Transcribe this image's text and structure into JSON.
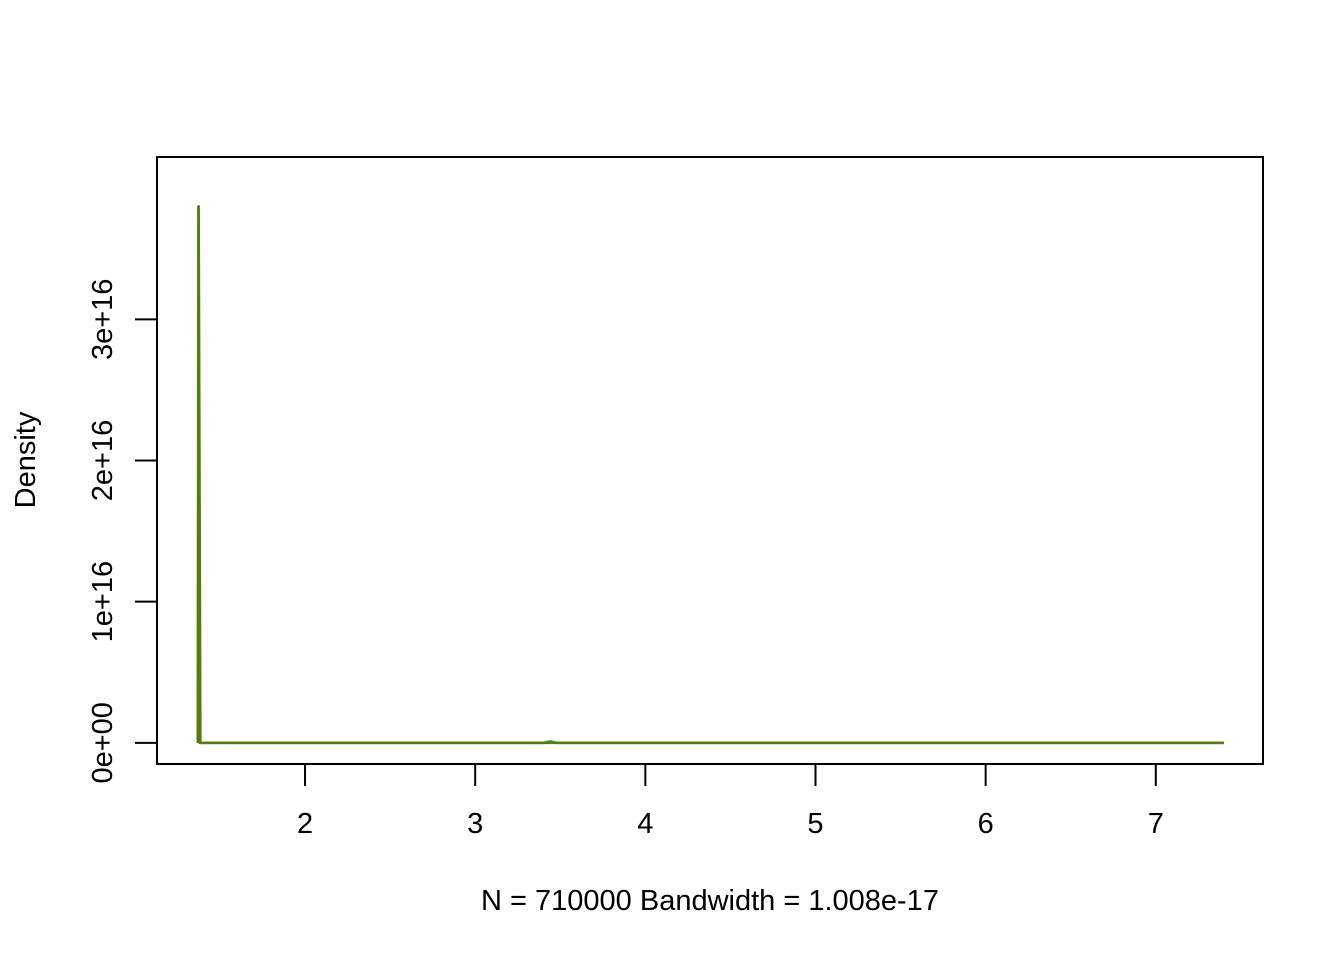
{
  "chart_data": {
    "type": "line",
    "title": "",
    "xlabel": "N = 710000   Bandwidth = 1.008e-17",
    "ylabel": "Density",
    "xlim": [
      1.13,
      7.63
    ],
    "ylim": [
      -1500000000000000.0,
      4.15e+16
    ],
    "x_ticks": [
      {
        "value": 2,
        "label": "2"
      },
      {
        "value": 3,
        "label": "3"
      },
      {
        "value": 4,
        "label": "4"
      },
      {
        "value": 5,
        "label": "5"
      },
      {
        "value": 6,
        "label": "6"
      },
      {
        "value": 7,
        "label": "7"
      }
    ],
    "y_ticks": [
      {
        "value": 0,
        "label": "0e+00"
      },
      {
        "value": 1e+16,
        "label": "1e+16"
      },
      {
        "value": 2e+16,
        "label": "2e+16"
      },
      {
        "value": 3e+16,
        "label": "3e+16"
      }
    ],
    "grid": false,
    "legend": "none",
    "series": [
      {
        "color": "#2ca02c",
        "x": [
          1.37,
          1.373,
          1.38,
          1.39,
          2.0,
          3.0,
          3.4,
          3.44,
          3.48,
          4.0,
          5.0,
          6.0,
          7.0,
          7.4
        ],
        "y": [
          0,
          3.8e+16,
          0,
          0,
          0,
          0,
          0,
          100000000000000.0,
          0,
          0,
          0,
          0,
          0,
          0
        ]
      },
      {
        "color": "#5a7a10",
        "x": [
          1.37,
          1.375,
          1.385,
          1.4,
          2.0,
          3.0,
          4.0,
          5.0,
          6.0,
          7.0,
          7.4
        ],
        "y": [
          0,
          3.8e+16,
          0,
          0,
          0,
          0,
          0,
          0,
          0,
          0,
          0
        ]
      }
    ]
  }
}
